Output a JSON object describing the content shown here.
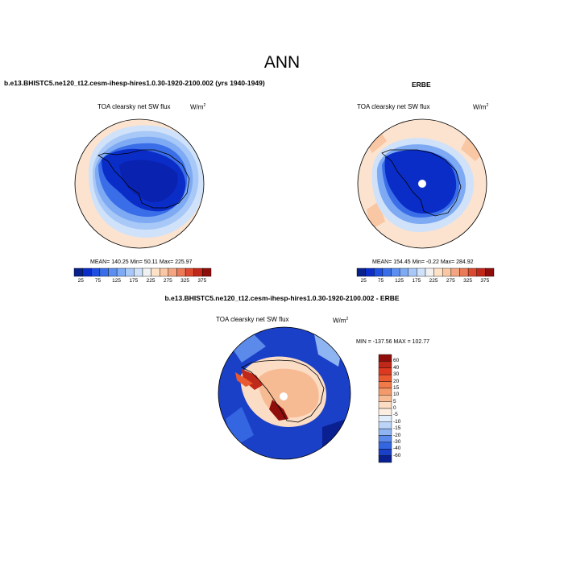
{
  "header": {
    "season_title": "ANN",
    "case_title": "b.e13.BHISTC5.ne120_t12.cesm-ihesp-hires1.0.30-1920-2100.002 (yrs 1940-1949)",
    "obs_title": "ERBE",
    "diff_title": "b.e13.BHISTC5.ne120_t12.cesm-ihesp-hires1.0.30-1920-2100.002 - ERBE"
  },
  "panels": {
    "model": {
      "variable": "TOA clearsky net SW flux",
      "units": "W/m",
      "units_sup": "2",
      "stats": "MEAN= 140.25  Min=  50.11  Max= 225.97"
    },
    "obs": {
      "variable": "TOA clearsky net SW flux",
      "units": "W/m",
      "units_sup": "2",
      "stats": "MEAN= 154.45  Min=  -0.22  Max= 284.92"
    },
    "diff": {
      "variable": "TOA clearsky net SW flux",
      "units": "W/m",
      "units_sup": "2",
      "stats": "MIN = -137.56 MAX = 102.77"
    }
  },
  "colorbars": {
    "horizontal_ticks": [
      "25",
      "75",
      "125",
      "175",
      "225",
      "275",
      "325",
      "375"
    ],
    "horizontal_colors": [
      "#08208a",
      "#0a2dc8",
      "#1f4fe0",
      "#3a6ee8",
      "#5a8ef0",
      "#7eaaf4",
      "#a8c8f7",
      "#d0e2fa",
      "#f1f1f1",
      "#fde2c8",
      "#f9c7a3",
      "#f4a481",
      "#ea7a58",
      "#db4a30",
      "#c0281a",
      "#8f0d0b"
    ],
    "vertical_ticks": [
      "60",
      "40",
      "30",
      "20",
      "15",
      "10",
      "5",
      "0",
      "-5",
      "-10",
      "-15",
      "-20",
      "-30",
      "-40",
      "-60"
    ],
    "vertical_colors": [
      "#8f0d0b",
      "#c0281a",
      "#db3a20",
      "#ea5a30",
      "#f27a48",
      "#f49a6a",
      "#f7bb94",
      "#fbdcc4",
      "#fdeee2",
      "#e2edfb",
      "#bcd4f7",
      "#8fb4f2",
      "#5b8aea",
      "#3366e0",
      "#1a40c8",
      "#0a2090"
    ]
  },
  "map_colors": {
    "ocean_light": "#fbe3cf",
    "ring_pale": "#bcd6f6",
    "ring_mid": "#7ea9ef",
    "ice_deep": "#0a2ec8",
    "ice_mid": "#2a50dc",
    "diff_ocean": "#1a40c8",
    "diff_ocean_dark": "#0a2090",
    "diff_land": "#f8c8a8",
    "diff_hot": "#c0281a"
  }
}
